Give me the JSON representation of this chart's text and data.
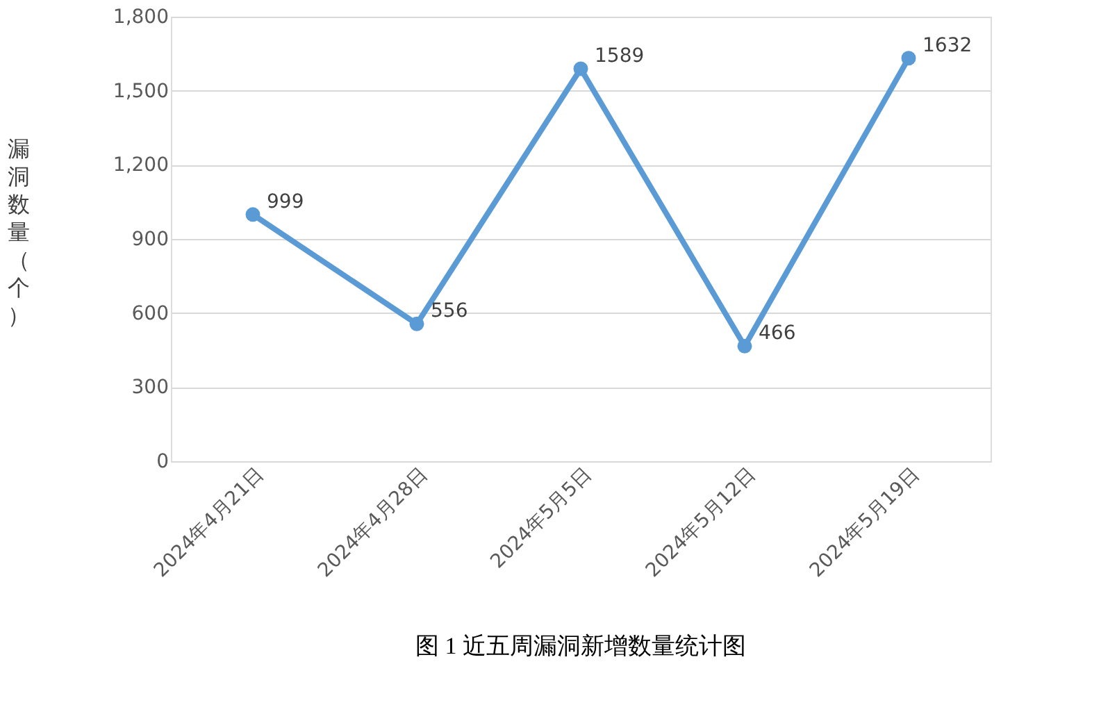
{
  "chart_data": {
    "type": "line",
    "categories": [
      "2024年4月21日",
      "2024年4月28日",
      "2024年5月5日",
      "2024年5月12日",
      "2024年5月19日"
    ],
    "series": [
      {
        "color": "#5b9bd5",
        "values": [
          999,
          556,
          1589,
          466,
          1632
        ]
      }
    ],
    "ylabel": "漏洞数量（个）",
    "ylim": [
      0,
      1800
    ],
    "yticks": [
      0,
      300,
      600,
      900,
      {
        "value": 1200,
        "label": "1,200"
      },
      {
        "value": 1500,
        "label": "1,500"
      },
      {
        "value": 1800,
        "label": "1,800"
      }
    ],
    "grid": "y",
    "marker": "circle",
    "line_style": "solid",
    "data_labels": true,
    "annotations": [
      "图 1  近五周漏洞新增数量统计图"
    ]
  }
}
